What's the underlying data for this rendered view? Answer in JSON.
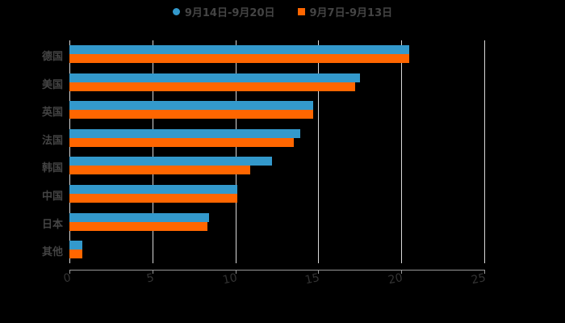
{
  "chart_data": {
    "type": "bar",
    "orientation": "horizontal",
    "title": "",
    "xlabel": "",
    "ylabel": "",
    "xlim": [
      0,
      25
    ],
    "xticks": [
      "0",
      "5",
      "10",
      "15",
      "20",
      "25"
    ],
    "grid": true,
    "legend_position": "top",
    "categories": [
      "德国",
      "美国",
      "英国",
      "法国",
      "韩国",
      "中国",
      "日本",
      "其他"
    ],
    "series": [
      {
        "name": "9月14日-9月20日",
        "color": "#3399cc",
        "values": [
          20.5,
          17.5,
          14.7,
          13.9,
          12.2,
          10.1,
          8.4,
          0.8
        ]
      },
      {
        "name": "9月7日-9月13日",
        "color": "#ff6600",
        "values": [
          20.5,
          17.2,
          14.7,
          13.5,
          10.9,
          10.1,
          8.3,
          0.8
        ]
      }
    ]
  },
  "legend": {
    "s1": "9月14日-9月20日",
    "s2": "9月7日-9月13日"
  }
}
